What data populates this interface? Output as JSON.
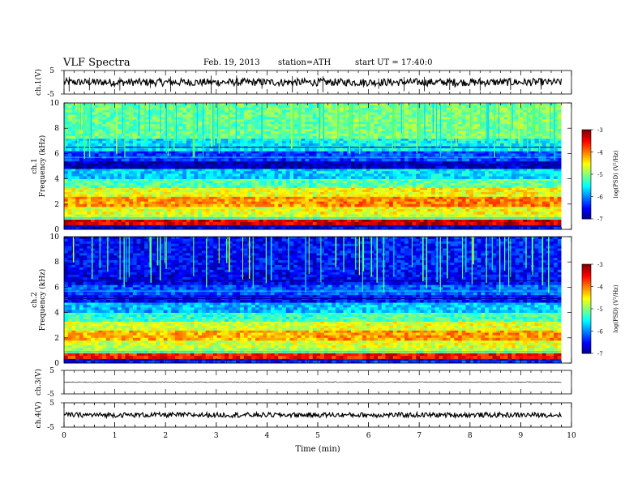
{
  "header": {
    "title": "VLF  Spectra",
    "date": "Feb. 19, 2013",
    "station": "station=ATH",
    "start": "start  UT =   17:40:0"
  },
  "chart_data": [
    {
      "type": "line",
      "panel": "ch1-waveform",
      "ylabel": "ch.1(V)",
      "yticks": [
        "5",
        "-5"
      ],
      "ylim": [
        -5,
        5
      ],
      "color": "#000000",
      "baseline": 0,
      "noise_amplitude": 0.4,
      "spike_times_min": [
        0.1,
        0.5,
        1.1,
        1.7,
        2.1,
        2.9,
        3.4,
        3.9,
        4.5,
        5.1,
        5.9,
        6.2,
        6.7,
        7.1,
        7.6,
        7.7,
        8.2,
        8.8,
        9.4
      ]
    },
    {
      "type": "heatmap",
      "panel": "ch1-spectrogram",
      "ylabel": "ch.1\nFrequency (kHz)",
      "yticks": [
        "10",
        "8",
        "6",
        "4",
        "2",
        "0"
      ],
      "ylim": [
        0,
        10
      ],
      "colorbar": {
        "label": "log(PSD) (V²/Hz)",
        "ticks": [
          "-3",
          "-4",
          "-5",
          "-6",
          "-7"
        ],
        "range": [
          -7,
          -3
        ]
      },
      "bands": [
        {
          "f": [
            0,
            0.35
          ],
          "level": -6.6
        },
        {
          "f": [
            0.35,
            0.8
          ],
          "level": -3.4
        },
        {
          "f": [
            0.8,
            1.2
          ],
          "level": -4.8
        },
        {
          "f": [
            1.2,
            1.8
          ],
          "level": -4.6
        },
        {
          "f": [
            1.8,
            2.6
          ],
          "level": -4.1
        },
        {
          "f": [
            2.6,
            3.3
          ],
          "level": -4.6
        },
        {
          "f": [
            3.3,
            4.0
          ],
          "level": -5.2
        },
        {
          "f": [
            4.0,
            4.8
          ],
          "level": -5.7
        },
        {
          "f": [
            4.8,
            5.4
          ],
          "level": -6.8
        },
        {
          "f": [
            5.4,
            6.2
          ],
          "level": -6.3
        },
        {
          "f": [
            6.2,
            7.2
          ],
          "level": -5.6
        },
        {
          "f": [
            7.2,
            10.0
          ],
          "level": -5.1
        }
      ]
    },
    {
      "type": "heatmap",
      "panel": "ch2-spectrogram",
      "ylabel": "ch.2\nFrequency (kHz)",
      "yticks": [
        "10",
        "8",
        "6",
        "4",
        "2",
        "0"
      ],
      "ylim": [
        0,
        10
      ],
      "colorbar": {
        "label": "log(PSD) (V²/Hz)",
        "ticks": [
          "-3",
          "-4",
          "-5",
          "-6",
          "-7"
        ],
        "range": [
          -7,
          -3
        ]
      },
      "bands": [
        {
          "f": [
            0,
            0.35
          ],
          "level": -6.4
        },
        {
          "f": [
            0.35,
            0.8
          ],
          "level": -3.6
        },
        {
          "f": [
            0.8,
            1.2
          ],
          "level": -4.9
        },
        {
          "f": [
            1.2,
            1.8
          ],
          "level": -4.7
        },
        {
          "f": [
            1.8,
            2.6
          ],
          "level": -4.2
        },
        {
          "f": [
            2.6,
            3.3
          ],
          "level": -4.7
        },
        {
          "f": [
            3.3,
            4.0
          ],
          "level": -5.3
        },
        {
          "f": [
            4.0,
            4.8
          ],
          "level": -5.8
        },
        {
          "f": [
            4.8,
            5.4
          ],
          "level": -6.5
        },
        {
          "f": [
            5.4,
            6.2
          ],
          "level": -6.2
        },
        {
          "f": [
            6.2,
            7.2
          ],
          "level": -6.6
        },
        {
          "f": [
            7.2,
            10.0
          ],
          "level": -6.5
        }
      ]
    },
    {
      "type": "line",
      "panel": "ch3-waveform",
      "ylabel": "ch.3(V)",
      "yticks": [
        "5",
        "-5"
      ],
      "ylim": [
        -5,
        5
      ],
      "color": "#000000",
      "baseline": 0,
      "noise_amplitude": 0.05,
      "spike_times_min": []
    },
    {
      "type": "line",
      "panel": "ch4-waveform",
      "ylabel": "ch.4(V)",
      "yticks": [
        "5",
        "-5"
      ],
      "ylim": [
        -5,
        5
      ],
      "color": "#000000",
      "baseline": 0,
      "noise_amplitude": 0.25,
      "spike_times_min": []
    }
  ],
  "xaxis": {
    "label": "Time  (min)",
    "xlim": [
      0,
      10
    ],
    "ticks": [
      "0",
      "1",
      "2",
      "3",
      "4",
      "5",
      "6",
      "7",
      "8",
      "9",
      "10"
    ],
    "data_end_min": 9.8
  }
}
